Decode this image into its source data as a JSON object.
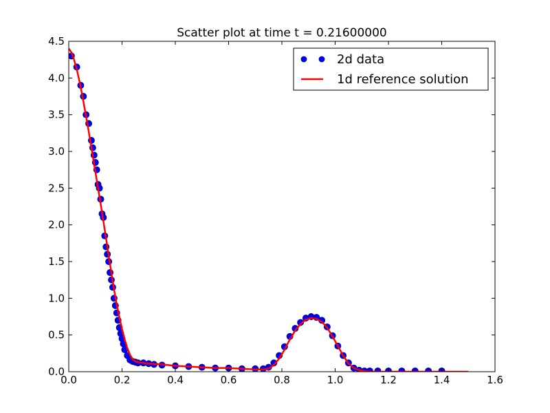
{
  "chart_data": {
    "type": "scatter",
    "title": "Scatter plot at time t =     0.21600000",
    "xlabel": "",
    "ylabel": "",
    "xlim": [
      0.0,
      1.6
    ],
    "ylim": [
      0.0,
      4.5
    ],
    "x_ticks": [
      "0.0",
      "0.2",
      "0.4",
      "0.6",
      "0.8",
      "1.0",
      "1.2",
      "1.4",
      "1.6"
    ],
    "y_ticks": [
      "0.0",
      "0.5",
      "1.0",
      "1.5",
      "2.0",
      "2.5",
      "3.0",
      "3.5",
      "4.0",
      "4.5"
    ],
    "grid": false,
    "legend_position": "top-right",
    "series": [
      {
        "name": "2d data",
        "kind": "scatter",
        "color": "#0000ff",
        "edge_color": "#000080",
        "x": [
          0.01,
          0.03,
          0.045,
          0.055,
          0.065,
          0.075,
          0.085,
          0.09,
          0.095,
          0.1,
          0.105,
          0.11,
          0.115,
          0.12,
          0.125,
          0.13,
          0.135,
          0.14,
          0.145,
          0.15,
          0.155,
          0.16,
          0.165,
          0.17,
          0.175,
          0.18,
          0.185,
          0.19,
          0.195,
          0.2,
          0.205,
          0.21,
          0.22,
          0.23,
          0.24,
          0.25,
          0.26,
          0.28,
          0.3,
          0.32,
          0.35,
          0.4,
          0.45,
          0.5,
          0.55,
          0.6,
          0.65,
          0.7,
          0.73,
          0.75,
          0.77,
          0.79,
          0.81,
          0.83,
          0.85,
          0.87,
          0.89,
          0.91,
          0.93,
          0.95,
          0.97,
          0.99,
          1.01,
          1.03,
          1.05,
          1.07,
          1.09,
          1.11,
          1.13,
          1.16,
          1.2,
          1.25,
          1.3,
          1.35,
          1.4
        ],
        "y": [
          4.3,
          4.15,
          3.9,
          3.75,
          3.5,
          3.38,
          3.15,
          3.05,
          2.95,
          2.85,
          2.75,
          2.55,
          2.5,
          2.35,
          2.15,
          2.1,
          1.85,
          1.7,
          1.6,
          1.5,
          1.35,
          1.25,
          1.15,
          1.0,
          0.9,
          0.8,
          0.7,
          0.6,
          0.52,
          0.45,
          0.38,
          0.3,
          0.22,
          0.16,
          0.14,
          0.13,
          0.12,
          0.12,
          0.11,
          0.1,
          0.09,
          0.08,
          0.07,
          0.06,
          0.05,
          0.05,
          0.04,
          0.04,
          0.04,
          0.06,
          0.12,
          0.22,
          0.34,
          0.48,
          0.59,
          0.67,
          0.73,
          0.75,
          0.74,
          0.7,
          0.61,
          0.49,
          0.35,
          0.22,
          0.12,
          0.05,
          0.02,
          0.01,
          0.01,
          0.01,
          0.01,
          0.01,
          0.01,
          0.01,
          0.01
        ]
      },
      {
        "name": "1d reference solution",
        "kind": "line",
        "color": "#ff0000",
        "x": [
          0.0,
          0.01,
          0.02,
          0.03,
          0.04,
          0.05,
          0.06,
          0.07,
          0.08,
          0.09,
          0.1,
          0.11,
          0.12,
          0.13,
          0.14,
          0.15,
          0.16,
          0.17,
          0.18,
          0.19,
          0.2,
          0.21,
          0.22,
          0.23,
          0.24,
          0.25,
          0.26,
          0.28,
          0.3,
          0.35,
          0.4,
          0.45,
          0.5,
          0.55,
          0.6,
          0.65,
          0.7,
          0.73,
          0.75,
          0.77,
          0.79,
          0.81,
          0.83,
          0.85,
          0.87,
          0.89,
          0.91,
          0.93,
          0.95,
          0.97,
          0.99,
          1.01,
          1.03,
          1.05,
          1.07,
          1.09,
          1.11,
          1.13,
          1.15,
          1.2,
          1.3,
          1.4,
          1.5
        ],
        "y": [
          4.4,
          4.35,
          4.25,
          4.12,
          3.96,
          3.78,
          3.58,
          3.38,
          3.16,
          2.94,
          2.72,
          2.5,
          2.28,
          2.05,
          1.82,
          1.58,
          1.35,
          1.12,
          0.92,
          0.74,
          0.58,
          0.44,
          0.32,
          0.23,
          0.17,
          0.14,
          0.13,
          0.12,
          0.11,
          0.1,
          0.08,
          0.07,
          0.06,
          0.05,
          0.05,
          0.04,
          0.03,
          0.03,
          0.04,
          0.09,
          0.18,
          0.3,
          0.44,
          0.56,
          0.65,
          0.71,
          0.73,
          0.72,
          0.68,
          0.6,
          0.48,
          0.35,
          0.22,
          0.11,
          0.05,
          0.02,
          0.01,
          0.0,
          0.0,
          0.0,
          0.0,
          0.0,
          0.0
        ]
      }
    ]
  }
}
